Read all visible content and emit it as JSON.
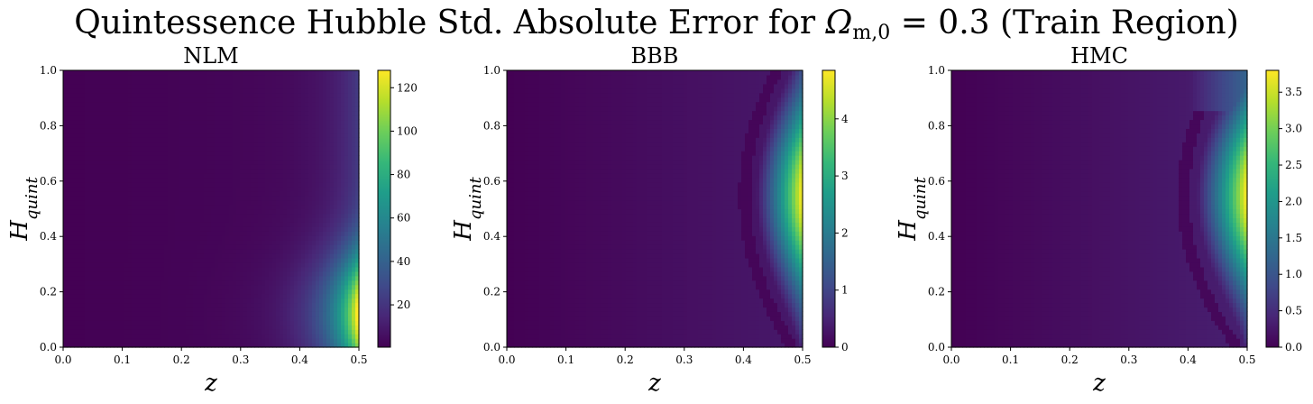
{
  "figure_title": {
    "prefix": "Quintessence Hubble Std. Absolute Error for ",
    "omega_symbol": "Ω",
    "omega_subscript": "m,0",
    "equals_value": " = 0.3",
    "suffix": " (Train Region)"
  },
  "colors": {
    "colormap": "viridis",
    "stops": [
      "#440154",
      "#482777",
      "#3f4a8a",
      "#31688e",
      "#26838f",
      "#1f9d8a",
      "#35b779",
      "#6cce5a",
      "#b6de2b",
      "#fde725"
    ]
  },
  "chart_data": [
    {
      "type": "heatmap",
      "title": "NLM",
      "xlabel": "z",
      "ylabel": "H_quint",
      "xlim": [
        0.0,
        0.5
      ],
      "ylim": [
        0.0,
        1.0
      ],
      "x_ticks": [
        "0.0",
        "0.1",
        "0.2",
        "0.3",
        "0.4",
        "0.5"
      ],
      "y_ticks": [
        "0.0",
        "0.2",
        "0.4",
        "0.6",
        "0.8",
        "1.0"
      ],
      "colorbar": {
        "vmin": 0.5,
        "vmax": 128,
        "ticks": [
          "20",
          "40",
          "60",
          "80",
          "100",
          "120"
        ],
        "tick_values": [
          20,
          40,
          60,
          80,
          100,
          120
        ]
      },
      "profile": "edge_bottom"
    },
    {
      "type": "heatmap",
      "title": "BBB",
      "xlabel": "z",
      "ylabel": "H_quint",
      "xlim": [
        0.0,
        0.5
      ],
      "ylim": [
        0.0,
        1.0
      ],
      "x_ticks": [
        "0.0",
        "0.1",
        "0.2",
        "0.3",
        "0.4",
        "0.5"
      ],
      "y_ticks": [
        "0.0",
        "0.2",
        "0.4",
        "0.6",
        "0.8",
        "1.0"
      ],
      "colorbar": {
        "vmin": 0.0,
        "vmax": 4.85,
        "ticks": [
          "0",
          "1",
          "2",
          "3",
          "4"
        ],
        "tick_values": [
          0,
          1,
          2,
          3,
          4
        ]
      },
      "profile": "arc"
    },
    {
      "type": "heatmap",
      "title": "HMC",
      "xlabel": "z",
      "ylabel": "H_quint",
      "xlim": [
        0.0,
        0.5
      ],
      "ylim": [
        0.0,
        1.0
      ],
      "x_ticks": [
        "0.0",
        "0.1",
        "0.2",
        "0.3",
        "0.4",
        "0.5"
      ],
      "y_ticks": [
        "0.0",
        "0.2",
        "0.4",
        "0.6",
        "0.8",
        "1.0"
      ],
      "colorbar": {
        "vmin": 0.0,
        "vmax": 3.8,
        "ticks": [
          "0.0",
          "0.5",
          "1.0",
          "1.5",
          "2.0",
          "2.5",
          "3.0",
          "3.5"
        ],
        "tick_values": [
          0.0,
          0.5,
          1.0,
          1.5,
          2.0,
          2.5,
          3.0,
          3.5
        ]
      },
      "profile": "arc_wide"
    }
  ]
}
